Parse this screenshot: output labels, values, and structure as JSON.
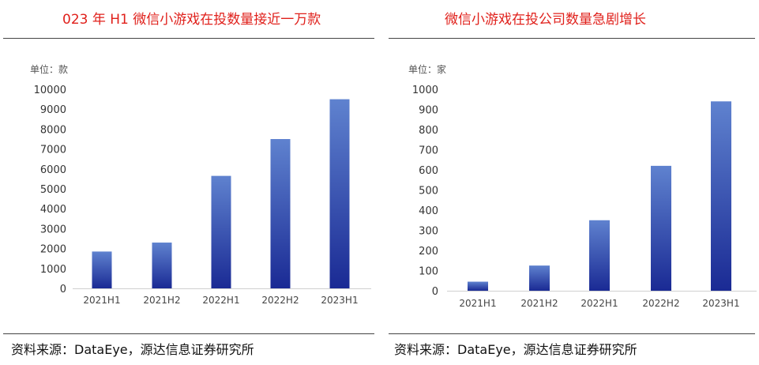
{
  "panels": [
    {
      "title": "023 年 H1 微信小游戏在投数量接近一万款",
      "source": "资料来源：DataEye，源达信息证券研究所"
    },
    {
      "title": "微信小游戏在投公司数量急剧增长",
      "source": "资料来源：DataEye，源达信息证券研究所"
    }
  ],
  "chart_data": [
    {
      "type": "bar",
      "title": "023 年 H1 微信小游戏在投数量接近一万款",
      "unit_label": "单位：款",
      "categories": [
        "2021H1",
        "2021H2",
        "2022H1",
        "2022H2",
        "2023H1"
      ],
      "values": [
        1850,
        2300,
        5650,
        7500,
        9500
      ],
      "ylim": [
        0,
        10000
      ],
      "yticks": [
        0,
        1000,
        2000,
        3000,
        4000,
        5000,
        6000,
        7000,
        8000,
        9000,
        10000
      ],
      "grid": false,
      "bar_color_top": "#5f82cf",
      "bar_color_bottom": "#1a2a94"
    },
    {
      "type": "bar",
      "title": "微信小游戏在投公司数量急剧增长",
      "unit_label": "单位：家",
      "categories": [
        "2021H1",
        "2021H2",
        "2022H1",
        "2022H2",
        "2023H1"
      ],
      "values": [
        45,
        125,
        350,
        620,
        940
      ],
      "ylim": [
        0,
        1000
      ],
      "yticks": [
        0,
        100,
        200,
        300,
        400,
        500,
        600,
        700,
        800,
        900,
        1000
      ],
      "grid": false,
      "bar_color_top": "#5f82cf",
      "bar_color_bottom": "#1a2a94"
    }
  ]
}
